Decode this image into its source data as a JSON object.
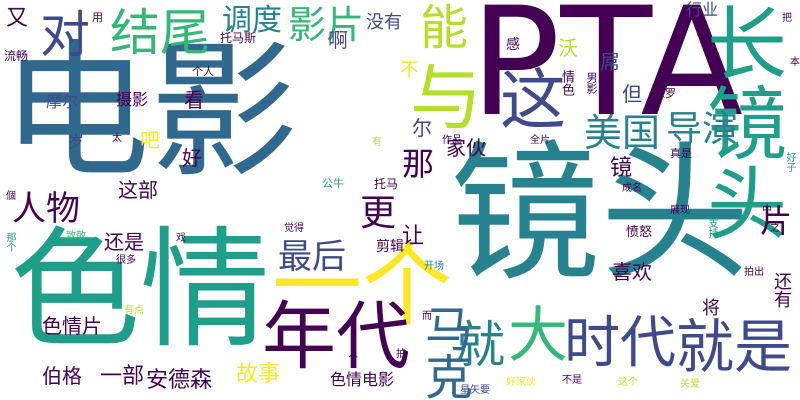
{
  "palette": {
    "purple": "#440154",
    "indigo": "#3e4a89",
    "blue": "#31688e",
    "teal": "#26828e",
    "green": "#1f9e89",
    "lightgreen": "#35b779",
    "lime": "#6ece58",
    "yellowgreen": "#b5de2b",
    "yellow": "#fde725"
  },
  "words": [
    {
      "text": "电影",
      "weight": 1.0,
      "color": "#31688e",
      "orientation": "horizontal"
    },
    {
      "text": "镜头",
      "weight": 0.9,
      "color": "#26828e",
      "orientation": "horizontal"
    },
    {
      "text": "PTA",
      "weight": 0.9,
      "color": "#440154",
      "orientation": "horizontal"
    },
    {
      "text": "色情",
      "weight": 0.8,
      "color": "#1f9e89",
      "orientation": "horizontal"
    },
    {
      "text": "长镜头",
      "weight": 0.5,
      "color": "#1f9e89",
      "orientation": "vertical"
    },
    {
      "text": "一个",
      "weight": 0.55,
      "color": "#fde725",
      "orientation": "horizontal"
    },
    {
      "text": "与",
      "weight": 0.45,
      "color": "#b5de2b",
      "orientation": "horizontal"
    },
    {
      "text": "年代",
      "weight": 0.45,
      "color": "#440154",
      "orientation": "horizontal"
    },
    {
      "text": "这",
      "weight": 0.42,
      "color": "#3e4a89",
      "orientation": "horizontal"
    },
    {
      "text": "大",
      "weight": 0.38,
      "color": "#35b779",
      "orientation": "horizontal"
    },
    {
      "text": "时代",
      "weight": 0.38,
      "color": "#3e4a89",
      "orientation": "horizontal"
    },
    {
      "text": "就是",
      "weight": 0.38,
      "color": "#3e4a89",
      "orientation": "horizontal"
    },
    {
      "text": "结尾",
      "weight": 0.3,
      "color": "#35b779",
      "orientation": "horizontal"
    },
    {
      "text": "对",
      "weight": 0.32,
      "color": "#3e4a89",
      "orientation": "horizontal"
    },
    {
      "text": "能",
      "weight": 0.3,
      "color": "#b5de2b",
      "orientation": "horizontal"
    },
    {
      "text": "就",
      "weight": 0.32,
      "color": "#26828e",
      "orientation": "horizontal"
    },
    {
      "text": "影片",
      "weight": 0.25,
      "color": "#35b779",
      "orientation": "horizontal"
    },
    {
      "text": "美国",
      "weight": 0.25,
      "color": "#26828e",
      "orientation": "horizontal"
    },
    {
      "text": "导演",
      "weight": 0.22,
      "color": "#26828e",
      "orientation": "horizontal"
    },
    {
      "text": "马克",
      "weight": 0.3,
      "color": "#31688e",
      "orientation": "vertical"
    },
    {
      "text": "人物",
      "weight": 0.22,
      "color": "#440154",
      "orientation": "horizontal"
    },
    {
      "text": "最后",
      "weight": 0.22,
      "color": "#3e4a89",
      "orientation": "horizontal"
    },
    {
      "text": "更",
      "weight": 0.22,
      "color": "#440154",
      "orientation": "horizontal"
    },
    {
      "text": "调度",
      "weight": 0.2,
      "color": "#26828e",
      "orientation": "horizontal"
    },
    {
      "text": "那",
      "weight": 0.2,
      "color": "#440154",
      "orientation": "horizontal"
    },
    {
      "text": "片",
      "weight": 0.2,
      "color": "#440154",
      "orientation": "horizontal"
    },
    {
      "text": "又",
      "weight": 0.15,
      "color": "#440154",
      "orientation": "horizontal"
    },
    {
      "text": "啊",
      "weight": 0.14,
      "color": "#3e4a89",
      "orientation": "horizontal"
    },
    {
      "text": "没有",
      "weight": 0.12,
      "color": "#3e4a89",
      "orientation": "horizontal"
    },
    {
      "text": "沃",
      "weight": 0.12,
      "color": "#b5de2b",
      "orientation": "horizontal"
    },
    {
      "text": "屌",
      "weight": 0.12,
      "color": "#3e4a89",
      "orientation": "horizontal"
    },
    {
      "text": "但",
      "weight": 0.12,
      "color": "#3e4a89",
      "orientation": "horizontal"
    },
    {
      "text": "不",
      "weight": 0.12,
      "color": "#fde725",
      "orientation": "horizontal"
    },
    {
      "text": "看",
      "weight": 0.12,
      "color": "#440154",
      "orientation": "horizontal"
    },
    {
      "text": "尔",
      "weight": 0.12,
      "color": "#3e4a89",
      "orientation": "horizontal"
    },
    {
      "text": "家伙",
      "weight": 0.12,
      "color": "#440154",
      "orientation": "horizontal"
    },
    {
      "text": "好",
      "weight": 0.12,
      "color": "#440154",
      "orientation": "horizontal"
    },
    {
      "text": "镜",
      "weight": 0.12,
      "color": "#440154",
      "orientation": "horizontal"
    },
    {
      "text": "这部",
      "weight": 0.12,
      "color": "#440154",
      "orientation": "horizontal"
    },
    {
      "text": "吧",
      "weight": 0.12,
      "color": "#fde725",
      "orientation": "horizontal"
    },
    {
      "text": "岁",
      "weight": 0.11,
      "color": "#3e4a89",
      "orientation": "horizontal"
    },
    {
      "text": "摩尔",
      "weight": 0.11,
      "color": "#3e4a89",
      "orientation": "horizontal"
    },
    {
      "text": "摄影",
      "weight": 0.11,
      "color": "#440154",
      "orientation": "horizontal"
    },
    {
      "text": "还是",
      "weight": 0.12,
      "color": "#440154",
      "orientation": "horizontal"
    },
    {
      "text": "让",
      "weight": 0.12,
      "color": "#440154",
      "orientation": "horizontal"
    },
    {
      "text": "喜欢",
      "weight": 0.12,
      "color": "#440154",
      "orientation": "horizontal"
    },
    {
      "text": "色情片",
      "weight": 0.12,
      "color": "#440154",
      "orientation": "horizontal"
    },
    {
      "text": "伯格",
      "weight": 0.12,
      "color": "#440154",
      "orientation": "horizontal"
    },
    {
      "text": "一部",
      "weight": 0.12,
      "color": "#440154",
      "orientation": "horizontal"
    },
    {
      "text": "安德森",
      "weight": 0.12,
      "color": "#440154",
      "orientation": "horizontal"
    },
    {
      "text": "故事",
      "weight": 0.12,
      "color": "#fde725",
      "orientation": "horizontal"
    },
    {
      "text": "色情电影",
      "weight": 0.1,
      "color": "#440154",
      "orientation": "horizontal"
    },
    {
      "text": "将",
      "weight": 0.1,
      "color": "#440154",
      "orientation": "horizontal"
    },
    {
      "text": "还有",
      "weight": 0.1,
      "color": "#440154",
      "orientation": "vertical"
    },
    {
      "text": "剪辑",
      "weight": 0.08,
      "color": "#440154",
      "orientation": "horizontal"
    },
    {
      "text": "托马斯",
      "weight": 0.07,
      "color": "#440154",
      "orientation": "horizontal"
    },
    {
      "text": "行业",
      "weight": 0.08,
      "color": "#3e4a89",
      "orientation": "horizontal"
    },
    {
      "text": "流畅",
      "weight": 0.07,
      "color": "#440154",
      "orientation": "horizontal"
    },
    {
      "text": "用",
      "weight": 0.06,
      "color": "#440154",
      "orientation": "horizontal"
    },
    {
      "text": "感",
      "weight": 0.07,
      "color": "#440154",
      "orientation": "horizontal"
    },
    {
      "text": "情色",
      "weight": 0.07,
      "color": "#440154",
      "orientation": "vertical"
    },
    {
      "text": "男影",
      "weight": 0.06,
      "color": "#440154",
      "orientation": "vertical"
    },
    {
      "text": "保罗",
      "weight": 0.06,
      "color": "#440154",
      "orientation": "horizontal"
    },
    {
      "text": "个人",
      "weight": 0.06,
      "color": "#440154",
      "orientation": "horizontal"
    },
    {
      "text": "作品",
      "weight": 0.06,
      "color": "#440154",
      "orientation": "horizontal"
    },
    {
      "text": "全片",
      "weight": 0.06,
      "color": "#440154",
      "orientation": "horizontal"
    },
    {
      "text": "有",
      "weight": 0.06,
      "color": "#b5de2b",
      "orientation": "horizontal"
    },
    {
      "text": "太",
      "weight": 0.06,
      "color": "#440154",
      "orientation": "horizontal"
    },
    {
      "text": "公牛",
      "weight": 0.06,
      "color": "#1f9e89",
      "orientation": "horizontal"
    },
    {
      "text": "托马",
      "weight": 0.07,
      "color": "#440154",
      "orientation": "horizontal"
    },
    {
      "text": "真是",
      "weight": 0.06,
      "color": "#440154",
      "orientation": "horizontal"
    },
    {
      "text": "成名",
      "weight": 0.06,
      "color": "#440154",
      "orientation": "horizontal"
    },
    {
      "text": "展现",
      "weight": 0.06,
      "color": "#440154",
      "orientation": "horizontal"
    },
    {
      "text": "愤怒",
      "weight": 0.07,
      "color": "#440154",
      "orientation": "horizontal"
    },
    {
      "text": "支持",
      "weight": 0.06,
      "color": "#1f9e89",
      "orientation": "vertical"
    },
    {
      "text": "觉得",
      "weight": 0.06,
      "color": "#440154",
      "orientation": "horizontal"
    },
    {
      "text": "致敬",
      "weight": 0.06,
      "color": "#35b779",
      "orientation": "horizontal"
    },
    {
      "text": "戏",
      "weight": 0.06,
      "color": "#440154",
      "orientation": "horizontal"
    },
    {
      "text": "很多",
      "weight": 0.06,
      "color": "#440154",
      "orientation": "horizontal"
    },
    {
      "text": "那个",
      "weight": 0.06,
      "color": "#1f9e89",
      "orientation": "vertical"
    },
    {
      "text": "個",
      "weight": 0.06,
      "color": "#440154",
      "orientation": "horizontal"
    },
    {
      "text": "开场",
      "weight": 0.06,
      "color": "#26828e",
      "orientation": "horizontal"
    },
    {
      "text": "拍出",
      "weight": 0.06,
      "color": "#440154",
      "orientation": "horizontal"
    },
    {
      "text": "有点",
      "weight": 0.06,
      "color": "#b5de2b",
      "orientation": "horizontal"
    },
    {
      "text": "而",
      "weight": 0.06,
      "color": "#440154",
      "orientation": "horizontal"
    },
    {
      "text": "人",
      "weight": 0.06,
      "color": "#440154",
      "orientation": "horizontal"
    },
    {
      "text": "拍",
      "weight": 0.06,
      "color": "#440154",
      "orientation": "horizontal"
    },
    {
      "text": "这个",
      "weight": 0.06,
      "color": "#b5de2b",
      "orientation": "horizontal"
    },
    {
      "text": "不是",
      "weight": 0.06,
      "color": "#440154",
      "orientation": "horizontal"
    },
    {
      "text": "好家伙",
      "weight": 0.06,
      "color": "#fde725",
      "orientation": "horizontal"
    },
    {
      "text": "星矢要",
      "weight": 0.06,
      "color": "#3e4a89",
      "orientation": "horizontal"
    },
    {
      "text": "关爱",
      "weight": 0.06,
      "color": "#b5de2b",
      "orientation": "horizontal"
    },
    {
      "text": "把",
      "weight": 0.06,
      "color": "#440154",
      "orientation": "horizontal"
    },
    {
      "text": "中",
      "weight": 0.06,
      "color": "#440154",
      "orientation": "horizontal"
    },
    {
      "text": "之",
      "weight": 0.06,
      "color": "#440154",
      "orientation": "horizontal"
    },
    {
      "text": "好子",
      "weight": 0.06,
      "color": "#1f9e89",
      "orientation": "vertical"
    },
    {
      "text": "演员",
      "weight": 0.06,
      "color": "#440154",
      "orientation": "vertical"
    },
    {
      "text": "本",
      "weight": 0.06,
      "color": "#440154",
      "orientation": "horizontal"
    }
  ]
}
